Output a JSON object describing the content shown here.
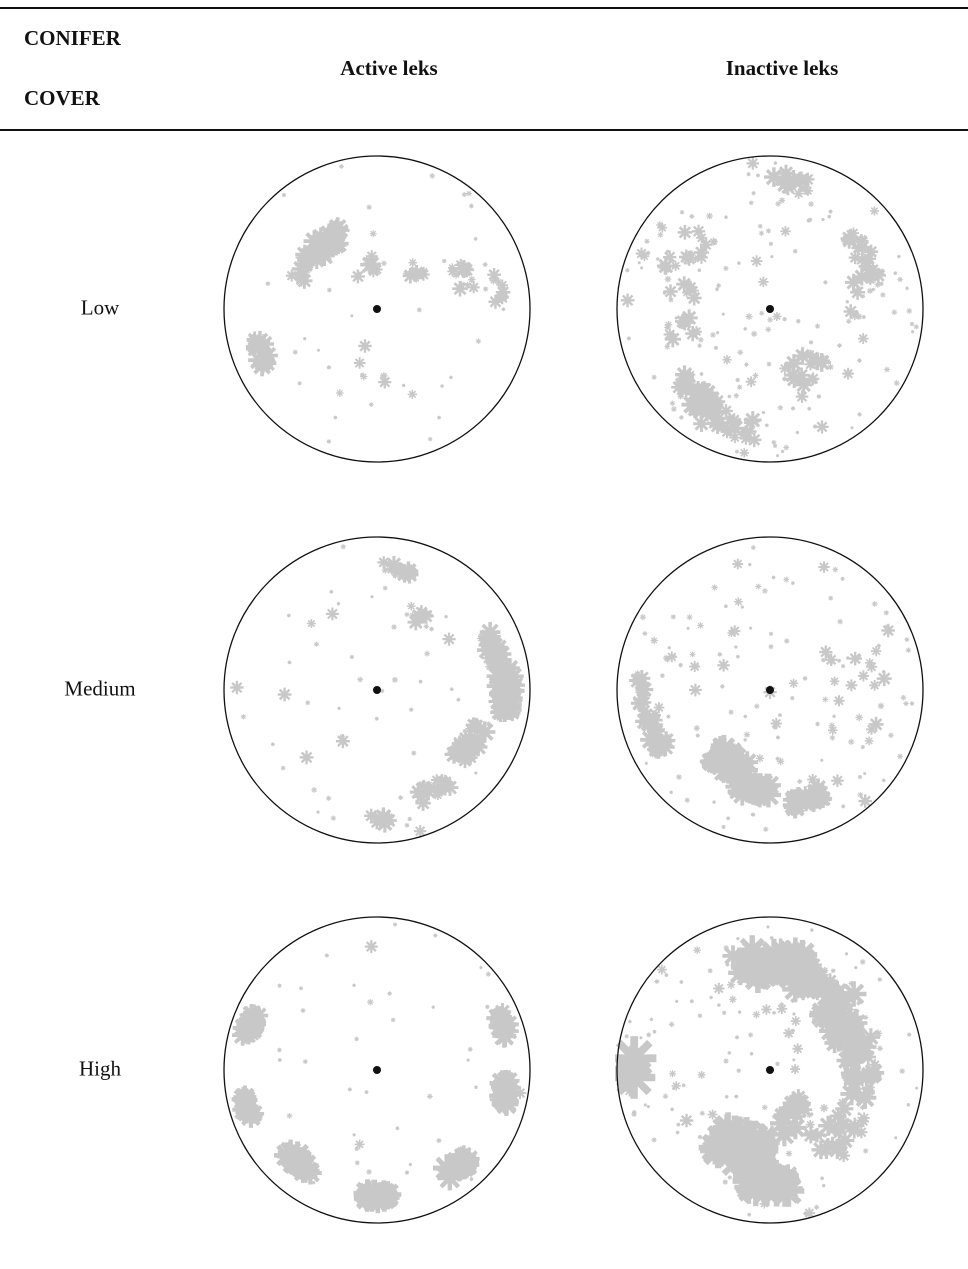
{
  "header": {
    "row_header_line1": "CONIFER",
    "row_header_line2": "COVER",
    "col_active": "Active leks",
    "col_inactive": "Inactive leks"
  },
  "rows": [
    {
      "label": "Low"
    },
    {
      "label": "Medium"
    },
    {
      "label": "High"
    }
  ],
  "colors": {
    "point": "#c8c8c8",
    "circle": "#111111",
    "center": "#111111"
  },
  "panels": [
    {
      "row": "Low",
      "column": "Active leks",
      "density": 0.35
    },
    {
      "row": "Low",
      "column": "Inactive leks",
      "density": 0.55
    },
    {
      "row": "Medium",
      "column": "Active leks",
      "density": 0.55
    },
    {
      "row": "Medium",
      "column": "Inactive leks",
      "density": 0.65
    },
    {
      "row": "High",
      "column": "Active leks",
      "density": 0.85
    },
    {
      "row": "High",
      "column": "Inactive leks",
      "density": 0.95
    }
  ]
}
